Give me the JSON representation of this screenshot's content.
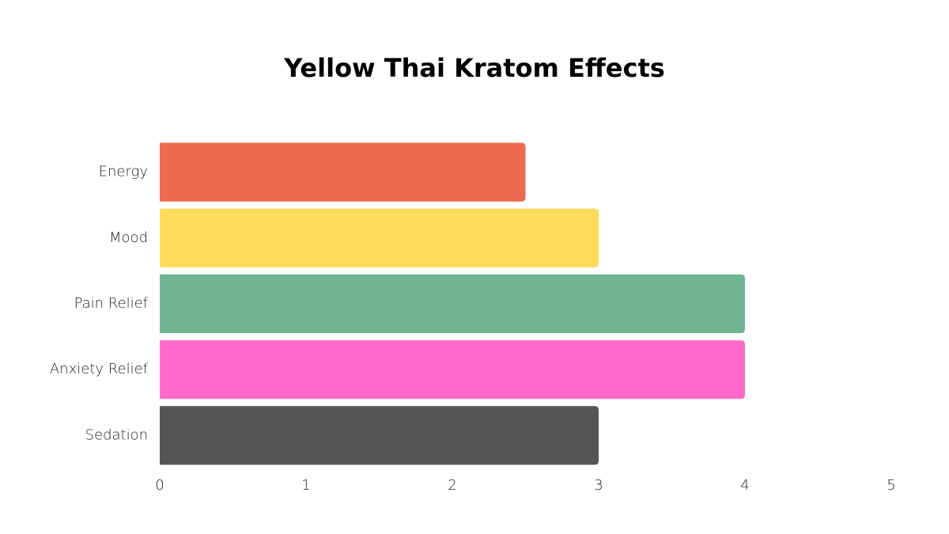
{
  "chart_data": {
    "type": "bar",
    "orientation": "horizontal",
    "title": "Yellow Thai Kratom Effects",
    "categories": [
      "Energy",
      "Mood",
      "Pain Relief",
      "Anxiety Relief",
      "Sedation"
    ],
    "values": [
      2.5,
      3,
      4,
      4,
      3
    ],
    "colors": [
      "#ec6b52",
      "#fedb5a",
      "#72b592",
      "#ff69c9",
      "#555555"
    ],
    "xlim": [
      0,
      5
    ],
    "xticks": [
      0,
      1,
      2,
      3,
      4,
      5
    ],
    "grid": false
  }
}
